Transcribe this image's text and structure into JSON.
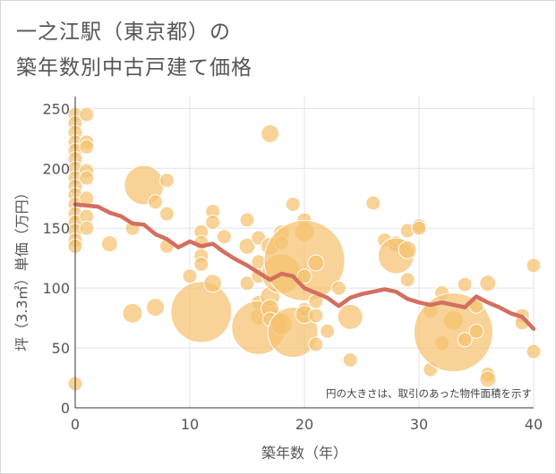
{
  "title_lines": [
    "一之江駅（東京都）の",
    "築年数別中古戸建て価格"
  ],
  "chart_data": {
    "type": "scatter",
    "xlabel": "築年数（年）",
    "ylabel": "坪（3.3㎡）単価（万円）",
    "xlim": [
      0,
      40
    ],
    "ylim": [
      0,
      260
    ],
    "xticks": [
      0,
      10,
      20,
      30,
      40
    ],
    "yticks": [
      0,
      50,
      100,
      150,
      200,
      250
    ],
    "grid": true,
    "annotation": "円の大きさは、取引のあった物件面積を示す",
    "colors": {
      "bubble": "#f5c06e",
      "trend_line": "#d36f5f",
      "grid": "#dfe3ea",
      "text": "#555555"
    },
    "bubbles": [
      {
        "x": 0,
        "y": 245,
        "s": 8
      },
      {
        "x": 0,
        "y": 238,
        "s": 8
      },
      {
        "x": 0,
        "y": 230,
        "s": 8
      },
      {
        "x": 0,
        "y": 222,
        "s": 8
      },
      {
        "x": 0,
        "y": 215,
        "s": 8
      },
      {
        "x": 0,
        "y": 208,
        "s": 8
      },
      {
        "x": 0,
        "y": 200,
        "s": 8
      },
      {
        "x": 0,
        "y": 192,
        "s": 8
      },
      {
        "x": 0,
        "y": 185,
        "s": 8
      },
      {
        "x": 0,
        "y": 178,
        "s": 8
      },
      {
        "x": 0,
        "y": 170,
        "s": 8
      },
      {
        "x": 0,
        "y": 162,
        "s": 8
      },
      {
        "x": 0,
        "y": 155,
        "s": 8
      },
      {
        "x": 0,
        "y": 148,
        "s": 8
      },
      {
        "x": 0,
        "y": 140,
        "s": 8
      },
      {
        "x": 0,
        "y": 135,
        "s": 8
      },
      {
        "x": 0,
        "y": 20,
        "s": 8
      },
      {
        "x": 1,
        "y": 245,
        "s": 8
      },
      {
        "x": 1,
        "y": 222,
        "s": 8
      },
      {
        "x": 1,
        "y": 218,
        "s": 8
      },
      {
        "x": 1,
        "y": 198,
        "s": 8
      },
      {
        "x": 1,
        "y": 192,
        "s": 8
      },
      {
        "x": 1,
        "y": 175,
        "s": 8
      },
      {
        "x": 1,
        "y": 160,
        "s": 8
      },
      {
        "x": 1,
        "y": 150,
        "s": 8
      },
      {
        "x": 3,
        "y": 137,
        "s": 9
      },
      {
        "x": 5,
        "y": 150,
        "s": 8
      },
      {
        "x": 5,
        "y": 79,
        "s": 11
      },
      {
        "x": 6,
        "y": 186,
        "s": 22
      },
      {
        "x": 7,
        "y": 172,
        "s": 8
      },
      {
        "x": 7,
        "y": 84,
        "s": 10
      },
      {
        "x": 8,
        "y": 190,
        "s": 8
      },
      {
        "x": 8,
        "y": 162,
        "s": 8
      },
      {
        "x": 8,
        "y": 135,
        "s": 8
      },
      {
        "x": 10,
        "y": 110,
        "s": 8
      },
      {
        "x": 11,
        "y": 147,
        "s": 8
      },
      {
        "x": 11,
        "y": 138,
        "s": 8
      },
      {
        "x": 11,
        "y": 127,
        "s": 8
      },
      {
        "x": 11,
        "y": 120,
        "s": 8
      },
      {
        "x": 11,
        "y": 80,
        "s": 34
      },
      {
        "x": 12,
        "y": 164,
        "s": 8
      },
      {
        "x": 12,
        "y": 155,
        "s": 8
      },
      {
        "x": 12,
        "y": 104,
        "s": 10
      },
      {
        "x": 13,
        "y": 143,
        "s": 8
      },
      {
        "x": 15,
        "y": 157,
        "s": 8
      },
      {
        "x": 15,
        "y": 135,
        "s": 9
      },
      {
        "x": 15,
        "y": 104,
        "s": 8
      },
      {
        "x": 16,
        "y": 142,
        "s": 8
      },
      {
        "x": 16,
        "y": 122,
        "s": 8
      },
      {
        "x": 16,
        "y": 110,
        "s": 8
      },
      {
        "x": 16,
        "y": 88,
        "s": 8
      },
      {
        "x": 16,
        "y": 76,
        "s": 9
      },
      {
        "x": 16,
        "y": 67,
        "s": 30
      },
      {
        "x": 17,
        "y": 229,
        "s": 10
      },
      {
        "x": 17,
        "y": 135,
        "s": 10
      },
      {
        "x": 17,
        "y": 93,
        "s": 11
      },
      {
        "x": 17,
        "y": 83,
        "s": 10
      },
      {
        "x": 17,
        "y": 74,
        "s": 8
      },
      {
        "x": 18,
        "y": 146,
        "s": 9
      },
      {
        "x": 18,
        "y": 138,
        "s": 8
      },
      {
        "x": 18,
        "y": 112,
        "s": 22
      },
      {
        "x": 18,
        "y": 70,
        "s": 12
      },
      {
        "x": 19,
        "y": 170,
        "s": 8
      },
      {
        "x": 19,
        "y": 63,
        "s": 28
      },
      {
        "x": 20,
        "y": 157,
        "s": 8
      },
      {
        "x": 20,
        "y": 147,
        "s": 11
      },
      {
        "x": 20,
        "y": 123,
        "s": 45
      },
      {
        "x": 20,
        "y": 110,
        "s": 8
      },
      {
        "x": 20,
        "y": 82,
        "s": 8
      },
      {
        "x": 20,
        "y": 78,
        "s": 10
      },
      {
        "x": 21,
        "y": 121,
        "s": 9
      },
      {
        "x": 21,
        "y": 89,
        "s": 8
      },
      {
        "x": 21,
        "y": 77,
        "s": 8
      },
      {
        "x": 21,
        "y": 53,
        "s": 8
      },
      {
        "x": 22,
        "y": 64,
        "s": 8
      },
      {
        "x": 23,
        "y": 100,
        "s": 8
      },
      {
        "x": 24,
        "y": 76,
        "s": 14
      },
      {
        "x": 24,
        "y": 40,
        "s": 8
      },
      {
        "x": 26,
        "y": 171,
        "s": 8
      },
      {
        "x": 27,
        "y": 140,
        "s": 8
      },
      {
        "x": 28,
        "y": 137,
        "s": 9
      },
      {
        "x": 28,
        "y": 127,
        "s": 20
      },
      {
        "x": 29,
        "y": 148,
        "s": 8
      },
      {
        "x": 29,
        "y": 132,
        "s": 10
      },
      {
        "x": 29,
        "y": 107,
        "s": 8
      },
      {
        "x": 30,
        "y": 152,
        "s": 8
      },
      {
        "x": 30,
        "y": 150,
        "s": 8
      },
      {
        "x": 31,
        "y": 81,
        "s": 8
      },
      {
        "x": 31,
        "y": 32,
        "s": 8
      },
      {
        "x": 32,
        "y": 96,
        "s": 8
      },
      {
        "x": 32,
        "y": 54,
        "s": 8
      },
      {
        "x": 33,
        "y": 73,
        "s": 11
      },
      {
        "x": 33,
        "y": 63,
        "s": 44
      },
      {
        "x": 34,
        "y": 103,
        "s": 8
      },
      {
        "x": 34,
        "y": 57,
        "s": 8
      },
      {
        "x": 35,
        "y": 85,
        "s": 8
      },
      {
        "x": 35,
        "y": 64,
        "s": 8
      },
      {
        "x": 36,
        "y": 104,
        "s": 9
      },
      {
        "x": 36,
        "y": 28,
        "s": 8
      },
      {
        "x": 36,
        "y": 24,
        "s": 9
      },
      {
        "x": 39,
        "y": 77,
        "s": 8
      },
      {
        "x": 39,
        "y": 71,
        "s": 8
      },
      {
        "x": 40,
        "y": 119,
        "s": 8
      },
      {
        "x": 40,
        "y": 47,
        "s": 8
      }
    ],
    "trend_line": [
      {
        "x": 0,
        "y": 170
      },
      {
        "x": 1,
        "y": 169
      },
      {
        "x": 2,
        "y": 168
      },
      {
        "x": 3,
        "y": 163
      },
      {
        "x": 4,
        "y": 160
      },
      {
        "x": 5,
        "y": 154
      },
      {
        "x": 6,
        "y": 153
      },
      {
        "x": 7,
        "y": 145
      },
      {
        "x": 8,
        "y": 141
      },
      {
        "x": 9,
        "y": 134
      },
      {
        "x": 10,
        "y": 139
      },
      {
        "x": 11,
        "y": 135
      },
      {
        "x": 12,
        "y": 137
      },
      {
        "x": 13,
        "y": 130
      },
      {
        "x": 14,
        "y": 124
      },
      {
        "x": 15,
        "y": 119
      },
      {
        "x": 16,
        "y": 113
      },
      {
        "x": 17,
        "y": 107
      },
      {
        "x": 18,
        "y": 112
      },
      {
        "x": 19,
        "y": 110
      },
      {
        "x": 20,
        "y": 100
      },
      {
        "x": 21,
        "y": 96
      },
      {
        "x": 22,
        "y": 92
      },
      {
        "x": 23,
        "y": 85
      },
      {
        "x": 24,
        "y": 92
      },
      {
        "x": 25,
        "y": 95
      },
      {
        "x": 26,
        "y": 97
      },
      {
        "x": 27,
        "y": 99
      },
      {
        "x": 28,
        "y": 97
      },
      {
        "x": 29,
        "y": 91
      },
      {
        "x": 30,
        "y": 88
      },
      {
        "x": 31,
        "y": 86
      },
      {
        "x": 32,
        "y": 88
      },
      {
        "x": 33,
        "y": 86
      },
      {
        "x": 34,
        "y": 84
      },
      {
        "x": 35,
        "y": 93
      },
      {
        "x": 36,
        "y": 88
      },
      {
        "x": 37,
        "y": 84
      },
      {
        "x": 38,
        "y": 79
      },
      {
        "x": 39,
        "y": 76
      },
      {
        "x": 40,
        "y": 66
      }
    ]
  }
}
